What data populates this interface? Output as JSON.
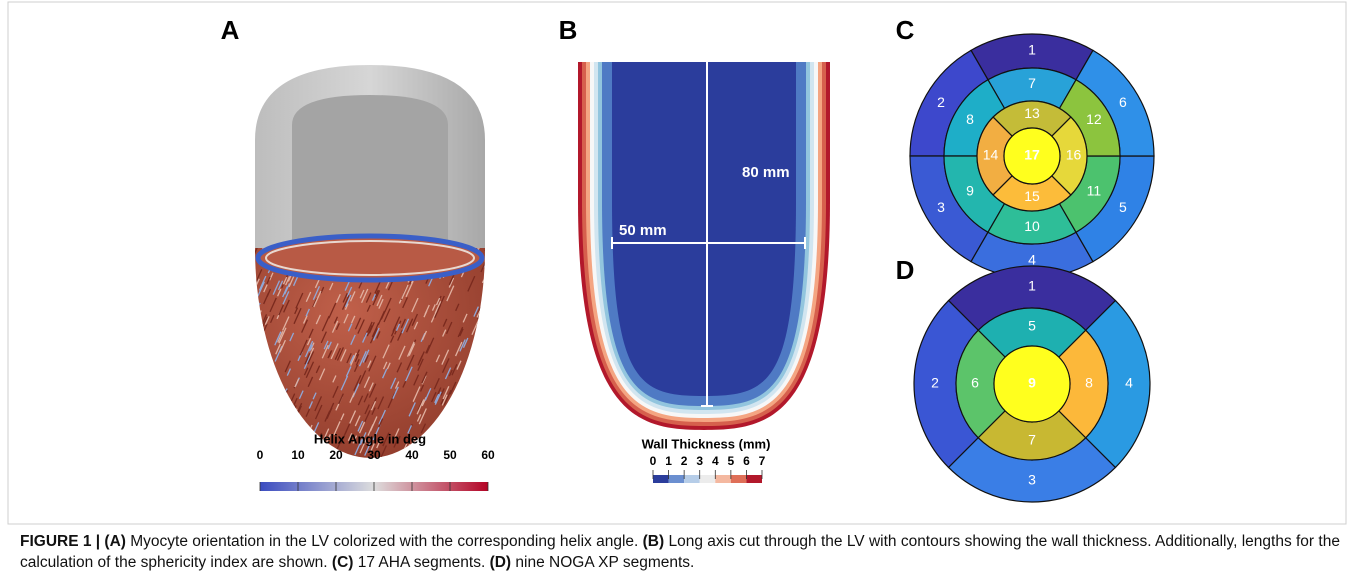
{
  "panels": {
    "a": {
      "label": "A",
      "colorbar_title": "Helix Angle in deg",
      "colorbar_ticks": [
        0,
        10,
        20,
        30,
        40,
        50,
        60
      ]
    },
    "b": {
      "label": "B",
      "length_label": "80 mm",
      "width_label": "50 mm",
      "colorbar_title": "Wall Thickness (mm)",
      "colorbar_ticks": [
        0,
        1,
        2,
        3,
        4,
        5,
        6,
        7
      ]
    },
    "c": {
      "label": "C",
      "segments": [
        "1",
        "2",
        "3",
        "4",
        "5",
        "6",
        "7",
        "8",
        "9",
        "10",
        "11",
        "12",
        "13",
        "14",
        "15",
        "16",
        "17"
      ]
    },
    "d": {
      "label": "D",
      "segments": [
        "1",
        "2",
        "3",
        "4",
        "5",
        "6",
        "7",
        "8",
        "9"
      ]
    }
  },
  "caption": [
    {
      "bold": true,
      "text": "FIGURE 1 | (A)"
    },
    {
      "bold": false,
      "text": " Myocyte orientation in the LV colorized with the corresponding helix angle. "
    },
    {
      "bold": true,
      "text": "(B)"
    },
    {
      "bold": false,
      "text": " Long axis cut through the LV with contours showing the wall thickness. Additionally, lengths for the calculation of the sphericity index are shown. "
    },
    {
      "bold": true,
      "text": "(C)"
    },
    {
      "bold": false,
      "text": " 17 AHA segments. "
    },
    {
      "bold": true,
      "text": "(D)"
    },
    {
      "bold": false,
      "text": " nine NOGA XP segments."
    }
  ]
}
